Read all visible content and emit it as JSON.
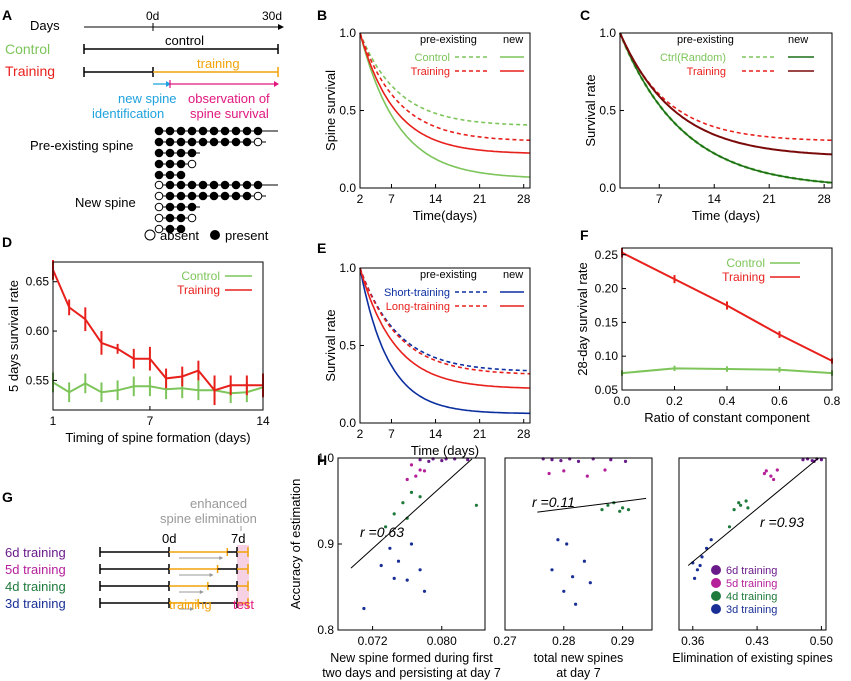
{
  "colors": {
    "green": "#7dc55a",
    "red": "#e8201c",
    "darkred": "#7a0a0a",
    "darkgreen": "#1a6e16",
    "purple": "#a0146e",
    "blue": "#0c2fa0",
    "orange": "#f2a20a",
    "magenta": "#e0177e",
    "cyan": "#1fa2dd",
    "gray": "#999999",
    "dotpurple": "#6a1b8a",
    "dotmagenta": "#b51f9a",
    "dotgreen": "#1f7a3c",
    "dotblue": "#1a2f96"
  },
  "panelA": {
    "letter": "A",
    "days_label": "Days",
    "day0": "0d",
    "day30": "30d",
    "control_label": "Control",
    "control_bar": "control",
    "training_label": "Training",
    "training_bar": "training",
    "new_spine_id": "new spine\nidentification",
    "new_spine_id_1": "new spine",
    "new_spine_id_2": "identification",
    "obs_1": "observation of",
    "obs_2": "spine survival",
    "pre_existing": "Pre-existing spine",
    "new_spine": "New spine",
    "absent": "absent",
    "present": "present"
  },
  "panelG": {
    "letter": "G",
    "enhanced_1": "enhanced",
    "enhanced_2": "spine elimination",
    "day0": "0d",
    "day7": "7d",
    "rows": [
      "6d training",
      "5d training",
      "4d training",
      "3d training"
    ],
    "training": "training",
    "test": "test"
  },
  "chart_data": [
    {
      "panel": "B",
      "type": "line",
      "xlabel": "Time(days)",
      "ylabel": "Spine survival",
      "xlim": [
        2,
        29
      ],
      "ylim": [
        0,
        1
      ],
      "xticks": [
        2,
        7,
        14,
        21,
        28
      ],
      "yticks": [
        "0.0",
        "0.5",
        "1.0"
      ],
      "legend_header": [
        "pre-existing",
        "new"
      ],
      "legend": [
        "Control",
        "Training"
      ],
      "series": [
        {
          "name": "Control pre-existing",
          "style": "dashed",
          "color": "green",
          "a": 0.4,
          "tau": 6.0
        },
        {
          "name": "Control new",
          "style": "solid",
          "color": "green",
          "a": 0.06,
          "tau": 6.0
        },
        {
          "name": "Training pre-existing",
          "style": "dashed",
          "color": "red",
          "a": 0.3,
          "tau": 6.0
        },
        {
          "name": "Training new",
          "style": "solid",
          "color": "red",
          "a": 0.22,
          "tau": 5.5
        }
      ]
    },
    {
      "panel": "C",
      "type": "line",
      "xlabel": "Time (days)",
      "ylabel": "Survival rate",
      "xlim": [
        2,
        29
      ],
      "ylim": [
        0,
        1
      ],
      "xticks": [
        7,
        14,
        21,
        28
      ],
      "yticks": [
        "0.0",
        "0.5",
        "1.0"
      ],
      "legend_header": [
        "pre-existing",
        "new"
      ],
      "legend": [
        "Ctrl(Random)",
        "Training"
      ],
      "series": [
        {
          "name": "Ctrl pre-existing",
          "style": "dashed",
          "color": "green",
          "a": 0.0,
          "tau": 8.0
        },
        {
          "name": "Ctrl new",
          "style": "solid",
          "color": "darkgreen",
          "a": 0.0,
          "tau": 8.0
        },
        {
          "name": "Training pre-existing",
          "style": "dashed",
          "color": "red",
          "a": 0.3,
          "tau": 6.0
        },
        {
          "name": "Training new",
          "style": "solid",
          "color": "darkred",
          "a": 0.2,
          "tau": 7.0
        }
      ]
    },
    {
      "panel": "D",
      "type": "line",
      "xlabel": "Timing of spine formation (days)",
      "ylabel": "5 days survival rate",
      "xlim": [
        1,
        14
      ],
      "ylim": [
        0.52,
        0.67
      ],
      "xticks": [
        1,
        7,
        14
      ],
      "yticks": [
        "0.55",
        "0.60",
        "0.65"
      ],
      "ytick_values": [
        0.55,
        0.6,
        0.65
      ],
      "legend": [
        "Control",
        "Training"
      ],
      "series": [
        {
          "name": "Control",
          "color": "green",
          "x": [
            1,
            2,
            3,
            4,
            5,
            6,
            7,
            8,
            9,
            10,
            11,
            12,
            13,
            14
          ],
          "y": [
            0.548,
            0.538,
            0.547,
            0.538,
            0.54,
            0.544,
            0.544,
            0.541,
            0.542,
            0.54,
            0.54,
            0.537,
            0.538,
            0.543
          ],
          "err": [
            0.01,
            0.01,
            0.01,
            0.01,
            0.01,
            0.01,
            0.01,
            0.01,
            0.01,
            0.01,
            0.01,
            0.01,
            0.01,
            0.01
          ]
        },
        {
          "name": "Training",
          "color": "red",
          "x": [
            1,
            2,
            3,
            4,
            5,
            6,
            7,
            8,
            9,
            10,
            11,
            12,
            13,
            14
          ],
          "y": [
            0.662,
            0.624,
            0.612,
            0.588,
            0.582,
            0.572,
            0.572,
            0.552,
            0.554,
            0.56,
            0.54,
            0.545,
            0.545,
            0.545
          ],
          "err": [
            0.01,
            0.008,
            0.012,
            0.012,
            0.005,
            0.01,
            0.012,
            0.01,
            0.01,
            0.01,
            0.015,
            0.01,
            0.01,
            0.012
          ]
        }
      ]
    },
    {
      "panel": "E",
      "type": "line",
      "xlabel": "Time (days)",
      "ylabel": "Survival rate",
      "xlim": [
        2,
        29
      ],
      "ylim": [
        0,
        1
      ],
      "xticks": [
        2,
        7,
        14,
        21,
        28
      ],
      "yticks": [
        "0.0",
        "0.5",
        "1.0"
      ],
      "legend_header": [
        "pre-existing",
        "new"
      ],
      "legend": [
        "Short-training",
        "Long-training"
      ],
      "series": [
        {
          "name": "Short pre-existing",
          "style": "dashed",
          "color": "blue",
          "a": 0.33,
          "tau": 6.0
        },
        {
          "name": "Short new",
          "style": "solid",
          "color": "blue",
          "a": 0.06,
          "tau": 4.5
        },
        {
          "name": "Long pre-existing",
          "style": "dashed",
          "color": "red",
          "a": 0.31,
          "tau": 6.0
        },
        {
          "name": "Long new",
          "style": "solid",
          "color": "red",
          "a": 0.22,
          "tau": 5.5
        }
      ]
    },
    {
      "panel": "F",
      "type": "line",
      "xlabel": "Ratio of constant component",
      "ylabel": "28-day survival rate",
      "xlim": [
        0,
        0.8
      ],
      "ylim": [
        0.05,
        0.26
      ],
      "xticks": [
        "0.0",
        "0.2",
        "0.4",
        "0.6",
        "0.8"
      ],
      "xtick_values": [
        0,
        0.2,
        0.4,
        0.6,
        0.8
      ],
      "yticks": [
        "0.05",
        "0.10",
        "0.15",
        "0.20",
        "0.25"
      ],
      "ytick_values": [
        0.05,
        0.1,
        0.15,
        0.2,
        0.25
      ],
      "legend": [
        "Control",
        "Training"
      ],
      "series": [
        {
          "name": "Control",
          "color": "green",
          "x": [
            0,
            0.2,
            0.4,
            0.6,
            0.8
          ],
          "y": [
            0.075,
            0.082,
            0.081,
            0.08,
            0.075
          ],
          "err": [
            0.004,
            0.004,
            0.004,
            0.004,
            0.004
          ]
        },
        {
          "name": "Training",
          "color": "red",
          "x": [
            0,
            0.2,
            0.4,
            0.6,
            0.8
          ],
          "y": [
            0.253,
            0.214,
            0.175,
            0.132,
            0.093
          ],
          "err": [
            0.007,
            0.006,
            0.006,
            0.005,
            0.004
          ]
        }
      ]
    },
    {
      "panel": "H",
      "type": "scatter",
      "ylabel": "Accuracy of estimation",
      "ylim": [
        0.8,
        1.0
      ],
      "yticks": [
        "0.8",
        "0.9",
        "1.0"
      ],
      "ytick_values": [
        0.8,
        0.9,
        1.0
      ],
      "legend": [
        "6d training",
        "5d training",
        "4d training",
        "3d training"
      ],
      "subplots": [
        {
          "xlabel_1": "New spine formed during first",
          "xlabel_2": "two days and persisting at day 7",
          "xlim": [
            0.068,
            0.085
          ],
          "xticks": [
            "0.072",
            "0.080"
          ],
          "xtick_values": [
            0.072,
            0.08
          ],
          "r": "r =0.63",
          "line": [
            [
              0.0695,
              0.872
            ],
            [
              0.0835,
              0.999
            ]
          ],
          "points": [
            [
              0.0775,
              0.998,
              0
            ],
            [
              0.079,
              0.999,
              0
            ],
            [
              0.08,
              0.997,
              0
            ],
            [
              0.0815,
              0.999,
              0
            ],
            [
              0.0785,
              0.996,
              0
            ],
            [
              0.083,
              0.998,
              0
            ],
            [
              0.0805,
              0.999,
              0
            ],
            [
              0.0765,
              0.992,
              1
            ],
            [
              0.0775,
              0.986,
              1
            ],
            [
              0.077,
              0.979,
              1
            ],
            [
              0.078,
              0.985,
              1
            ],
            [
              0.076,
              0.975,
              1
            ],
            [
              0.0735,
              0.92,
              2
            ],
            [
              0.0755,
              0.948,
              2
            ],
            [
              0.0775,
              0.955,
              2
            ],
            [
              0.0765,
              0.96,
              2
            ],
            [
              0.0745,
              0.935,
              2
            ],
            [
              0.084,
              0.945,
              2
            ],
            [
              0.076,
              0.93,
              2
            ],
            [
              0.073,
              0.875,
              3
            ],
            [
              0.0745,
              0.86,
              3
            ],
            [
              0.076,
              0.858,
              3
            ],
            [
              0.0775,
              0.87,
              3
            ],
            [
              0.074,
              0.895,
              3
            ],
            [
              0.0765,
              0.9,
              3
            ],
            [
              0.071,
              0.825,
              3
            ],
            [
              0.075,
              0.88,
              3
            ],
            [
              0.078,
              0.845,
              3
            ]
          ]
        },
        {
          "xlabel_1": "total new spines",
          "xlabel_2": "at day 7",
          "xlim": [
            0.27,
            0.295
          ],
          "xticks": [
            "0.27",
            "0.28",
            "0.29"
          ],
          "xtick_values": [
            0.27,
            0.28,
            0.29
          ],
          "r": "r =0.11",
          "line": [
            [
              0.2755,
              0.937
            ],
            [
              0.294,
              0.953
            ]
          ],
          "points": [
            [
              0.2765,
              0.999,
              0
            ],
            [
              0.278,
              0.998,
              0
            ],
            [
              0.2795,
              0.997,
              0
            ],
            [
              0.281,
              0.999,
              0
            ],
            [
              0.2825,
              0.996,
              0
            ],
            [
              0.285,
              0.999,
              0
            ],
            [
              0.288,
              0.998,
              0
            ],
            [
              0.2905,
              0.996,
              0
            ],
            [
              0.28,
              0.985,
              1
            ],
            [
              0.284,
              0.979,
              1
            ],
            [
              0.287,
              0.986,
              1
            ],
            [
              0.2775,
              0.982,
              1
            ],
            [
              0.2885,
              0.948,
              2
            ],
            [
              0.29,
              0.942,
              2
            ],
            [
              0.2895,
              0.938,
              2
            ],
            [
              0.2875,
              0.945,
              2
            ],
            [
              0.291,
              0.94,
              2
            ],
            [
              0.2865,
              0.94,
              2
            ],
            [
              0.278,
              0.87,
              3
            ],
            [
              0.2815,
              0.862,
              3
            ],
            [
              0.2835,
              0.88,
              3
            ],
            [
              0.28,
              0.845,
              3
            ],
            [
              0.282,
              0.83,
              3
            ],
            [
              0.2845,
              0.855,
              3
            ],
            [
              0.2805,
              0.9,
              3
            ],
            [
              0.279,
              0.905,
              3
            ]
          ]
        },
        {
          "xlabel_1": "Elimination of existing spines",
          "xlabel_2": "",
          "xlim": [
            0.345,
            0.505
          ],
          "xticks": [
            "0.36",
            "0.43",
            "0.50"
          ],
          "xtick_values": [
            0.36,
            0.43,
            0.5
          ],
          "r": "r =0.93",
          "line": [
            [
              0.355,
              0.875
            ],
            [
              0.497,
              1.0
            ]
          ],
          "points": [
            [
              0.48,
              0.998,
              0
            ],
            [
              0.485,
              0.999,
              0
            ],
            [
              0.49,
              0.997,
              0
            ],
            [
              0.495,
              0.999,
              0
            ],
            [
              0.5,
              0.998,
              0
            ],
            [
              0.492,
              0.996,
              0
            ],
            [
              0.44,
              0.985,
              1
            ],
            [
              0.445,
              0.979,
              1
            ],
            [
              0.448,
              0.975,
              1
            ],
            [
              0.438,
              0.982,
              1
            ],
            [
              0.452,
              0.986,
              1
            ],
            [
              0.405,
              0.94,
              2
            ],
            [
              0.412,
              0.945,
              2
            ],
            [
              0.418,
              0.95,
              2
            ],
            [
              0.4,
              0.92,
              2
            ],
            [
              0.42,
              0.942,
              2
            ],
            [
              0.41,
              0.948,
              2
            ],
            [
              0.36,
              0.878,
              3
            ],
            [
              0.365,
              0.87,
              3
            ],
            [
              0.37,
              0.885,
              3
            ],
            [
              0.375,
              0.895,
              3
            ],
            [
              0.362,
              0.86,
              3
            ],
            [
              0.38,
              0.905,
              3
            ],
            [
              0.368,
              0.875,
              3
            ]
          ]
        }
      ]
    }
  ],
  "panel_letters": {
    "B": "B",
    "C": "C",
    "D": "D",
    "E": "E",
    "F": "F",
    "H": "H"
  }
}
